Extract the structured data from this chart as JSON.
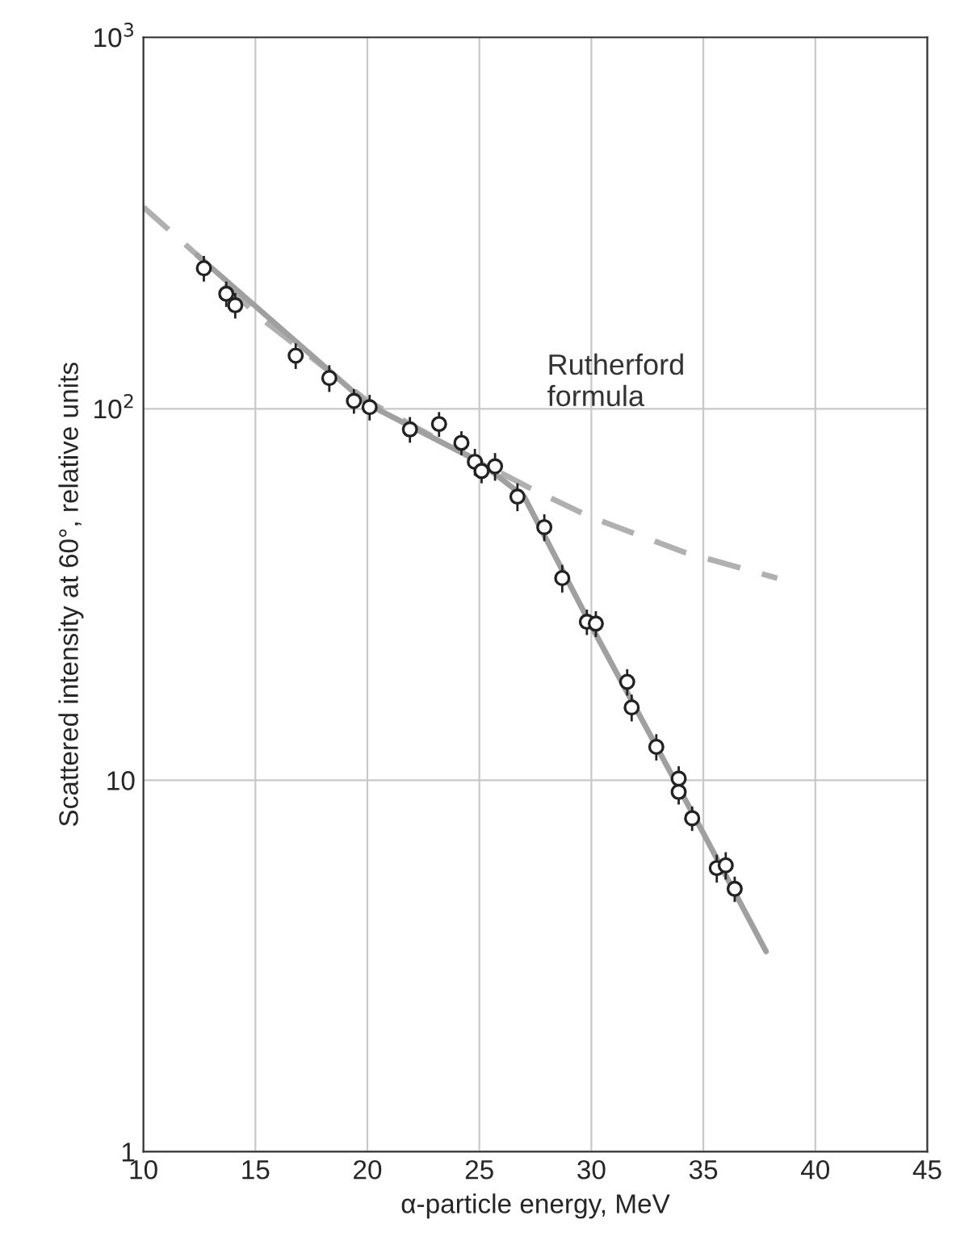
{
  "chart_data": {
    "type": "scatter",
    "xlabel": "α-particle energy, MeV",
    "ylabel": "Scattered intensity at 60°, relative units",
    "log": "y",
    "xlim": [
      10,
      45
    ],
    "xticks": [
      10,
      15,
      20,
      25,
      30,
      35,
      40,
      45
    ],
    "ylim": [
      1,
      1000
    ],
    "yticks": [
      1,
      10,
      {
        "value": 100,
        "label": "10$^{2}$"
      },
      {
        "value": 1000,
        "label": "10$^{3}$"
      }
    ],
    "grid": true,
    "series": [
      {
        "type": "line",
        "line_style": "dashed",
        "color": "#b0b0b0",
        "x": [
          10,
          12.7,
          15,
          20,
          25,
          27.3,
          30,
          34.2,
          38.3
        ],
        "values": [
          349,
          250,
          180,
          105,
          72,
          61,
          51,
          41,
          35
        ]
      },
      {
        "type": "line",
        "line_style": "solid",
        "color": "#a0a0a0",
        "x": [
          12.4,
          20,
          25,
          27,
          30,
          35,
          37.8
        ],
        "values": [
          259,
          103,
          72,
          58,
          26,
          7.2,
          3.46
        ]
      },
      {
        "marker": "circle",
        "color": "#222222",
        "x": [
          12.7,
          13.7,
          14.1,
          16.8,
          18.3,
          19.4,
          20.1,
          21.9,
          23.2,
          24.2,
          24.8,
          25.1,
          25.7,
          26.7,
          27.9,
          28.7,
          29.8,
          30.2,
          31.6,
          31.8,
          32.9,
          33.9,
          33.9,
          34.5,
          35.6,
          36.0,
          36.4
        ],
        "values": [
          239,
          204,
          190,
          139,
          121,
          105,
          101,
          88,
          91,
          81,
          72,
          68,
          70,
          58,
          48,
          35,
          26.7,
          26.4,
          18.4,
          15.7,
          12.3,
          10.1,
          9.3,
          7.9,
          5.8,
          5.9,
          5.1
        ],
        "errors": [
          19,
          16,
          15,
          11,
          10,
          8,
          8,
          7,
          7,
          6,
          6,
          5,
          6,
          5,
          4,
          3,
          2.1,
          2.1,
          1.5,
          1.3,
          1.0,
          0.8,
          0.7,
          0.6,
          0.5,
          0.5,
          0.4
        ]
      }
    ],
    "annotations": [
      "Rutherford\nformula"
    ]
  }
}
